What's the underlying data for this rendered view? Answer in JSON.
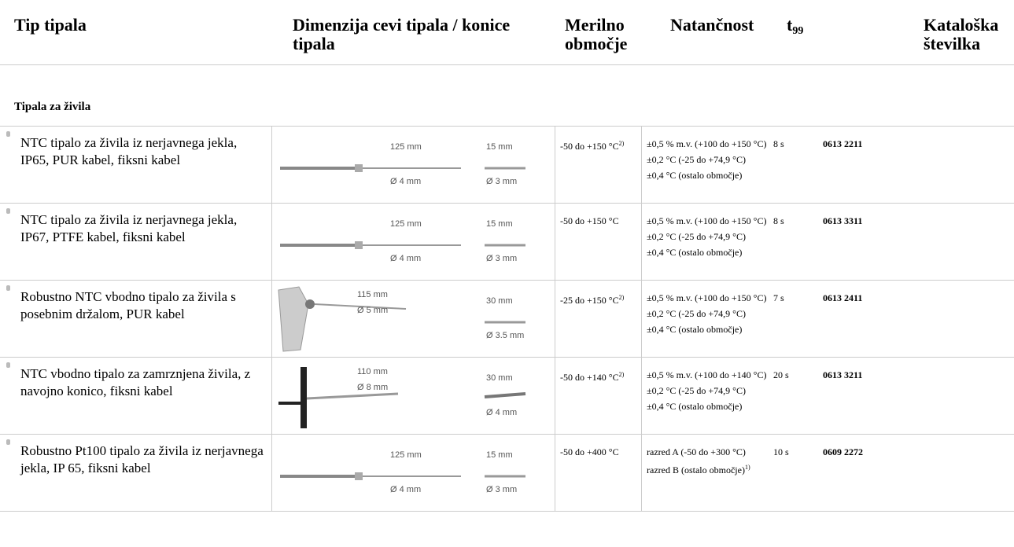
{
  "header": {
    "type": "Tip tipala",
    "dimension": "Dimenzija cevi tipala / konice tipala",
    "range": "Merilno območje",
    "accuracy": "Natančnost",
    "t99": {
      "text": "t",
      "sub": "99"
    },
    "catalog": "Kataloška številka"
  },
  "section": "Tipala za živila",
  "rows": [
    {
      "name": "NTC tipalo za živila iz nerjavnega jekla, IP65, PUR kabel, fiksni kabel",
      "length": "125 mm",
      "diameter": "Ø 4 mm",
      "tip_length": "15 mm",
      "tip_diameter": "Ø 3 mm",
      "range": "-50 do +150  °C",
      "range_note": "2)",
      "accuracy": [
        {
          "text": "±0,5 % m.v. (+100 do +150 °C)"
        },
        {
          "text": "±0,2 °C (-25 do +74,9 °C)"
        },
        {
          "text": "±0,4 °C (ostalo območje)"
        }
      ],
      "t99": "8 s",
      "catalog": "0613 2211"
    },
    {
      "name": "NTC tipalo za živila iz nerjavnega jekla, IP67, PTFE kabel, fiksni kabel",
      "length": "125 mm",
      "diameter": "Ø 4 mm",
      "tip_length": "15 mm",
      "tip_diameter": "Ø 3 mm",
      "range": "-50 do +150  °C",
      "accuracy": [
        {
          "text": "±0,5 % m.v. (+100 do +150 °C)"
        },
        {
          "text": "±0,2 °C (-25 do +74,9 °C)"
        },
        {
          "text": "±0,4 °C (ostalo območje)"
        }
      ],
      "t99": "8 s",
      "catalog": "0613 3311"
    },
    {
      "name": "Robustno NTC vbodno tipalo za živila s posebnim držalom, PUR kabel",
      "length": "115 mm",
      "diameter": "Ø 5 mm",
      "tip_length": "30 mm",
      "tip_diameter": "Ø 3.5 mm",
      "range": "-25 do +150  °C",
      "range_note": "2)",
      "accuracy": [
        {
          "text": "±0,5 % m.v. (+100 do +150 °C)"
        },
        {
          "text": "±0,2 °C (-25 do +74,9 °C)"
        },
        {
          "text": "±0,4 °C (ostalo območje)"
        }
      ],
      "t99": "7 s",
      "catalog": "0613 2411"
    },
    {
      "name": "NTC vbodno tipalo za zamrznjena živila, z navojno konico, fiksni kabel",
      "length": "110 mm",
      "diameter": "Ø 8 mm",
      "tip_length": "30 mm",
      "tip_diameter": "Ø 4 mm",
      "range": "-50 do +140  °C",
      "range_note": "2)",
      "accuracy": [
        {
          "text": "±0,5 % m.v. (+100 do +140 °C)"
        },
        {
          "text": "±0,2 °C (-25 do +74,9 °C)"
        },
        {
          "text": "±0,4 °C (ostalo območje)"
        }
      ],
      "t99": "20 s",
      "catalog": "0613 3211"
    },
    {
      "name": "Robustno Pt100 tipalo za živila iz nerjavnega jekla, IP 65, fiksni kabel",
      "length": "125 mm",
      "diameter": "Ø 4 mm",
      "tip_length": "15 mm",
      "tip_diameter": "Ø 3 mm",
      "range": "-50 do +400  °C",
      "accuracy": [
        {
          "text": "razred A (-50 do +300 °C)"
        },
        {
          "text": "razred B (ostalo območje)",
          "note": "1)"
        }
      ],
      "t99": "10 s",
      "catalog": "0609 2272"
    }
  ]
}
